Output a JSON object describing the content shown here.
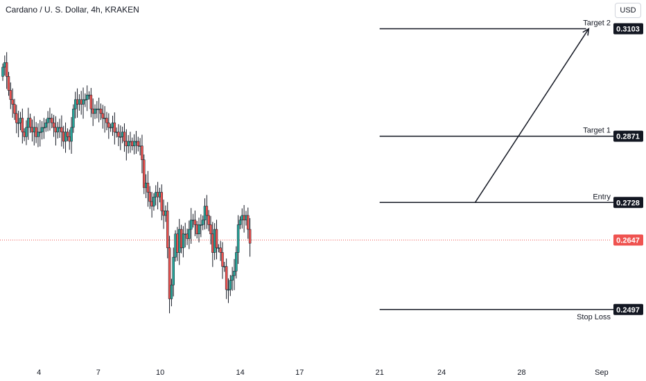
{
  "header": {
    "title": "Cardano / U. S. Dollar, 4h, KRAKEN",
    "currency_button": "USD"
  },
  "colors": {
    "up": "#26a69a",
    "down": "#ef5350",
    "wick": "#131722",
    "level_line": "#131722",
    "current_line": "#ef5350",
    "label_bg": "#131722",
    "current_label_bg": "#ef5350"
  },
  "chart_data": {
    "type": "candlestick",
    "ylim": [
      0.2395,
      0.3165
    ],
    "xlim": [
      0,
      250
    ],
    "x_ticks": [
      {
        "label": "4",
        "x": 14
      },
      {
        "label": "7",
        "x": 37
      },
      {
        "label": "10",
        "x": 61
      },
      {
        "label": "14",
        "x": 92
      },
      {
        "label": "17",
        "x": 115
      },
      {
        "label": "21",
        "x": 146
      },
      {
        "label": "24",
        "x": 170
      },
      {
        "label": "28",
        "x": 201
      },
      {
        "label": "Sep",
        "x": 232
      }
    ],
    "closes": [
      0.302,
      0.303,
      0.3,
      0.297,
      0.295,
      0.294,
      0.292,
      0.29,
      0.29,
      0.291,
      0.288,
      0.287,
      0.289,
      0.291,
      0.289,
      0.288,
      0.289,
      0.287,
      0.288,
      0.288,
      0.289,
      0.289,
      0.29,
      0.291,
      0.291,
      0.29,
      0.289,
      0.288,
      0.289,
      0.289,
      0.288,
      0.286,
      0.288,
      0.287,
      0.286,
      0.289,
      0.293,
      0.295,
      0.294,
      0.295,
      0.294,
      0.295,
      0.295,
      0.296,
      0.296,
      0.293,
      0.292,
      0.293,
      0.293,
      0.293,
      0.292,
      0.291,
      0.291,
      0.29,
      0.289,
      0.289,
      0.29,
      0.288,
      0.288,
      0.287,
      0.287,
      0.288,
      0.286,
      0.285,
      0.286,
      0.286,
      0.285,
      0.286,
      0.286,
      0.285,
      0.285,
      0.282,
      0.276,
      0.277,
      0.275,
      0.273,
      0.272,
      0.274,
      0.275,
      0.274,
      0.275,
      0.271,
      0.27,
      0.271,
      0.263,
      0.252,
      0.255,
      0.261,
      0.266,
      0.262,
      0.267,
      0.263,
      0.266,
      0.266,
      0.265,
      0.267,
      0.269,
      0.269,
      0.268,
      0.266,
      0.268,
      0.268,
      0.269,
      0.272,
      0.27,
      0.268,
      0.266,
      0.262,
      0.267,
      0.263,
      0.263,
      0.262,
      0.259,
      0.259,
      0.254,
      0.254,
      0.256,
      0.257,
      0.258,
      0.262,
      0.268,
      0.269,
      0.27,
      0.269,
      0.27,
      0.267,
      0.264
    ],
    "ohlc_note": "",
    "levels": [
      {
        "name": "Target 2",
        "price": "0.3103",
        "value": 0.3103,
        "x_start": 146,
        "x_end": 226,
        "label_pos": "above"
      },
      {
        "name": "Target 1",
        "price": "0.2871",
        "value": 0.2871,
        "x_start": 146,
        "x_end": 239,
        "label_pos": "above"
      },
      {
        "name": "Entry",
        "price": "0.2728",
        "value": 0.2728,
        "x_start": 146,
        "x_end": 239,
        "label_pos": "above"
      },
      {
        "name": "Stop Loss",
        "price": "0.2497",
        "value": 0.2497,
        "x_start": 146,
        "x_end": 239,
        "label_pos": "below"
      }
    ],
    "current_price": {
      "price": "0.2647",
      "value": 0.2647
    },
    "arrow": {
      "x1": 183,
      "y1": 0.2728,
      "x2": 227,
      "y2": 0.3103
    }
  }
}
